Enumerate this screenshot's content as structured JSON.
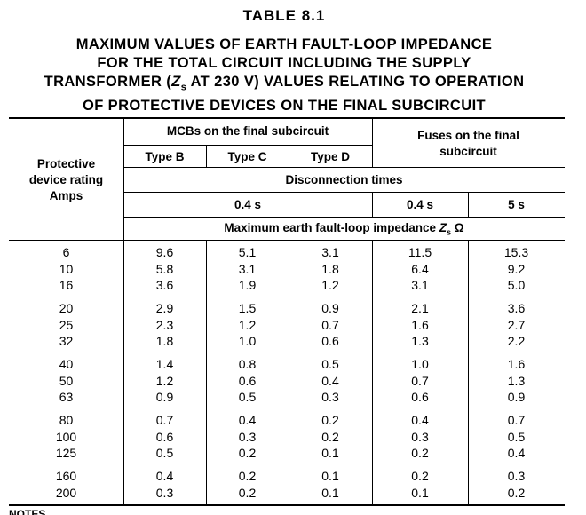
{
  "title": "TABLE 8.1",
  "subtitle": {
    "line1": "MAXIMUM VALUES OF EARTH FAULT-LOOP IMPEDANCE",
    "line2": "FOR THE TOTAL CIRCUIT INCLUDING THE SUPPLY",
    "line3_pre": "TRANSFORMER (",
    "line3_z": "Z",
    "line3_sub": "s",
    "line3_post": " AT 230 V) VALUES RELATING TO OPERATION",
    "line4": "OF PROTECTIVE DEVICES ON THE FINAL SUBCIRCUIT"
  },
  "header": {
    "rating_line1": "Protective",
    "rating_line2": "device rating",
    "rating_line3": "Amps",
    "mcbs": "MCBs on the final subcircuit",
    "type_b": "Type B",
    "type_c": "Type C",
    "type_d": "Type D",
    "fuses_line1": "Fuses on the final",
    "fuses_line2": "subcircuit",
    "disconnection": "Disconnection times",
    "mcb_time": "0.4 s",
    "fuse_time_1": "0.4 s",
    "fuse_time_2": "5 s",
    "impedance_pre": "Maximum earth fault-loop impedance ",
    "impedance_z": "Z",
    "impedance_sub": "s",
    "impedance_unit": " Ω"
  },
  "groups": [
    [
      [
        "6",
        "9.6",
        "5.1",
        "3.1",
        "11.5",
        "15.3"
      ],
      [
        "10",
        "5.8",
        "3.1",
        "1.8",
        "6.4",
        "9.2"
      ],
      [
        "16",
        "3.6",
        "1.9",
        "1.2",
        "3.1",
        "5.0"
      ]
    ],
    [
      [
        "20",
        "2.9",
        "1.5",
        "0.9",
        "2.1",
        "3.6"
      ],
      [
        "25",
        "2.3",
        "1.2",
        "0.7",
        "1.6",
        "2.7"
      ],
      [
        "32",
        "1.8",
        "1.0",
        "0.6",
        "1.3",
        "2.2"
      ]
    ],
    [
      [
        "40",
        "1.4",
        "0.8",
        "0.5",
        "1.0",
        "1.6"
      ],
      [
        "50",
        "1.2",
        "0.6",
        "0.4",
        "0.7",
        "1.3"
      ],
      [
        "63",
        "0.9",
        "0.5",
        "0.3",
        "0.6",
        "0.9"
      ]
    ],
    [
      [
        "80",
        "0.7",
        "0.4",
        "0.2",
        "0.4",
        "0.7"
      ],
      [
        "100",
        "0.6",
        "0.3",
        "0.2",
        "0.3",
        "0.5"
      ],
      [
        "125",
        "0.5",
        "0.2",
        "0.1",
        "0.2",
        "0.4"
      ]
    ],
    [
      [
        "160",
        "0.4",
        "0.2",
        "0.1",
        "0.2",
        "0.3"
      ],
      [
        "200",
        "0.3",
        "0.2",
        "0.1",
        "0.1",
        "0.2"
      ]
    ]
  ],
  "notes_label": "NOTES"
}
